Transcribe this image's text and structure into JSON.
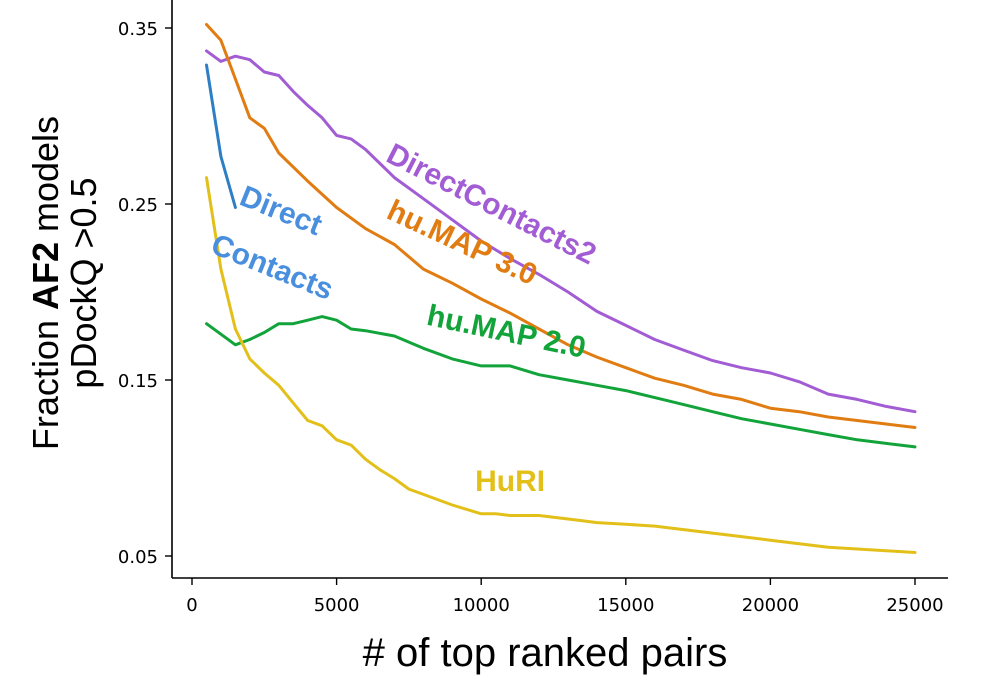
{
  "chart_data": {
    "type": "line",
    "xlabel": "# of top ranked pairs",
    "ylabel_line1_prefix": "Fraction ",
    "ylabel_line1_bold": "AF2",
    "ylabel_line1_suffix": " models",
    "ylabel_line2": "pDockQ >0.5",
    "xlim": [
      0,
      25000
    ],
    "ylim": [
      0.05,
      0.35
    ],
    "xticks": [
      0,
      5000,
      10000,
      15000,
      20000,
      25000
    ],
    "xtick_labels": [
      "0",
      "5000",
      "10000",
      "15000",
      "20000",
      "25000"
    ],
    "yticks": [
      0.05,
      0.15,
      0.25,
      0.35
    ],
    "ytick_labels": [
      "0.05",
      "0.15",
      "0.25",
      "0.35"
    ],
    "grid": false,
    "legend": "inline labels",
    "series": [
      {
        "name": "DirectContacts2",
        "color": "#a25cd4",
        "x": [
          500,
          1000,
          1500,
          2000,
          2500,
          3000,
          3500,
          4000,
          4500,
          5000,
          5500,
          6000,
          7000,
          8000,
          9000,
          10000,
          11000,
          12000,
          13000,
          14000,
          15000,
          16000,
          17000,
          18000,
          19000,
          20000,
          21000,
          22000,
          23000,
          24000,
          25000
        ],
        "y": [
          0.337,
          0.331,
          0.334,
          0.332,
          0.325,
          0.323,
          0.314,
          0.306,
          0.299,
          0.289,
          0.287,
          0.281,
          0.265,
          0.253,
          0.241,
          0.229,
          0.219,
          0.21,
          0.2,
          0.189,
          0.181,
          0.173,
          0.167,
          0.161,
          0.157,
          0.154,
          0.149,
          0.142,
          0.139,
          0.135,
          0.132
        ]
      },
      {
        "name": "hu.MAP 3.0",
        "color": "#e07c12",
        "x": [
          500,
          1000,
          1500,
          2000,
          2500,
          3000,
          4000,
          5000,
          6000,
          7000,
          8000,
          9000,
          10000,
          11000,
          12000,
          13000,
          14000,
          15000,
          16000,
          17000,
          18000,
          19000,
          20000,
          21000,
          22000,
          23000,
          24000,
          25000
        ],
        "y": [
          0.352,
          0.343,
          0.321,
          0.299,
          0.293,
          0.279,
          0.263,
          0.248,
          0.236,
          0.227,
          0.213,
          0.205,
          0.196,
          0.188,
          0.179,
          0.17,
          0.163,
          0.157,
          0.151,
          0.147,
          0.142,
          0.139,
          0.134,
          0.132,
          0.129,
          0.127,
          0.125,
          0.123
        ]
      },
      {
        "name": "hu.MAP 2.0",
        "color": "#12a43a",
        "x": [
          500,
          1000,
          1500,
          2000,
          2500,
          3000,
          3500,
          4000,
          4500,
          5000,
          5500,
          6000,
          7000,
          8000,
          9000,
          10000,
          11000,
          12000,
          13000,
          14000,
          15000,
          16000,
          17000,
          18000,
          19000,
          20000,
          21000,
          22000,
          23000,
          24000,
          25000
        ],
        "y": [
          0.182,
          0.176,
          0.17,
          0.173,
          0.177,
          0.182,
          0.182,
          0.184,
          0.186,
          0.184,
          0.179,
          0.178,
          0.175,
          0.168,
          0.162,
          0.158,
          0.158,
          0.153,
          0.15,
          0.147,
          0.144,
          0.14,
          0.136,
          0.132,
          0.128,
          0.125,
          0.122,
          0.119,
          0.116,
          0.114,
          0.112
        ]
      },
      {
        "name": "Direct\nContacts",
        "color": "#2e7ec4",
        "x": [
          500,
          1000,
          1500
        ],
        "y": [
          0.329,
          0.277,
          0.248
        ]
      },
      {
        "name": "HuRI",
        "color": "#e3c019",
        "x": [
          500,
          1000,
          1500,
          2000,
          2500,
          3000,
          3500,
          4000,
          4500,
          5000,
          5500,
          6000,
          6500,
          7000,
          7500,
          8000,
          9000,
          10000,
          10500,
          11000,
          12000,
          13000,
          13500,
          14000,
          15000,
          16000,
          17000,
          18000,
          19000,
          20000,
          21000,
          22000,
          23000,
          24000,
          25000
        ],
        "y": [
          0.265,
          0.213,
          0.179,
          0.162,
          0.154,
          0.147,
          0.137,
          0.127,
          0.124,
          0.116,
          0.113,
          0.105,
          0.099,
          0.094,
          0.088,
          0.085,
          0.079,
          0.074,
          0.074,
          0.073,
          0.073,
          0.071,
          0.07,
          0.069,
          0.068,
          0.067,
          0.065,
          0.063,
          0.061,
          0.059,
          0.057,
          0.055,
          0.054,
          0.053,
          0.052
        ]
      }
    ],
    "annotations": [
      {
        "text": "DirectContacts2",
        "color": "#a25cd4",
        "x": 10200,
        "y": 0.245,
        "angle": 27
      },
      {
        "text": "hu.MAP 3.0",
        "color": "#e07c12",
        "x": 9200,
        "y": 0.223,
        "angle": 25
      },
      {
        "text": "hu.MAP 2.0",
        "color": "#12a43a",
        "x": 10800,
        "y": 0.172,
        "angle": 12
      },
      {
        "text": "Direct",
        "color": "#4a8fde",
        "x": 2950,
        "y": 0.241,
        "angle": 22
      },
      {
        "text": "Contacts",
        "color": "#4a8fde",
        "x": 2650,
        "y": 0.209,
        "angle": 22
      },
      {
        "text": "HuRI",
        "color": "#e3c019",
        "x": 11000,
        "y": 0.087,
        "angle": 0
      }
    ]
  }
}
